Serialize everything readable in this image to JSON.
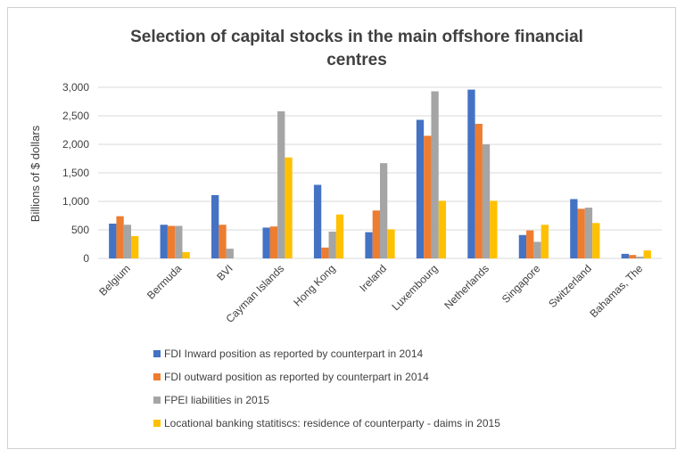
{
  "chart_data": {
    "type": "bar",
    "title_lines": [
      "Selection of capital stocks in the main offshore financial",
      "centres"
    ],
    "xlabel": "",
    "ylabel": "Billions of $ dollars",
    "ylim": [
      0,
      3000
    ],
    "yticks": [
      0,
      500,
      1000,
      1500,
      2000,
      2500,
      3000
    ],
    "ytick_labels": [
      "0",
      "500",
      "1,000",
      "1,500",
      "2,000",
      "2,500",
      "3,000"
    ],
    "grid": true,
    "legend_position": "bottom",
    "categories": [
      "Belgium",
      "Bermuda",
      "BVI",
      "Cayman Islands",
      "Hong Kong",
      "Ireland",
      "Luxembourg",
      "Netherlands",
      "Singapore",
      "Switzerland",
      "Bahamas, The"
    ],
    "series": [
      {
        "name": "FDI Inward position as reported by counterpart in 2014",
        "color": "#4472c4",
        "values": [
          610,
          590,
          1110,
          540,
          1290,
          460,
          2430,
          2960,
          410,
          1040,
          80
        ]
      },
      {
        "name": "FDI outward position as reported by counterpart in 2014",
        "color": "#ed7d31",
        "values": [
          740,
          570,
          590,
          560,
          190,
          840,
          2150,
          2360,
          490,
          870,
          60
        ]
      },
      {
        "name": "FPEI liabilities in  2015",
        "color": "#a5a5a5",
        "values": [
          590,
          570,
          170,
          2580,
          470,
          1670,
          2930,
          2000,
          290,
          890,
          30
        ]
      },
      {
        "name": "Locational banking statitiscs: residence of counterparty - daims in 2015",
        "color": "#ffc000",
        "values": [
          390,
          110,
          0,
          1770,
          770,
          510,
          1010,
          1010,
          590,
          620,
          140
        ]
      }
    ]
  }
}
